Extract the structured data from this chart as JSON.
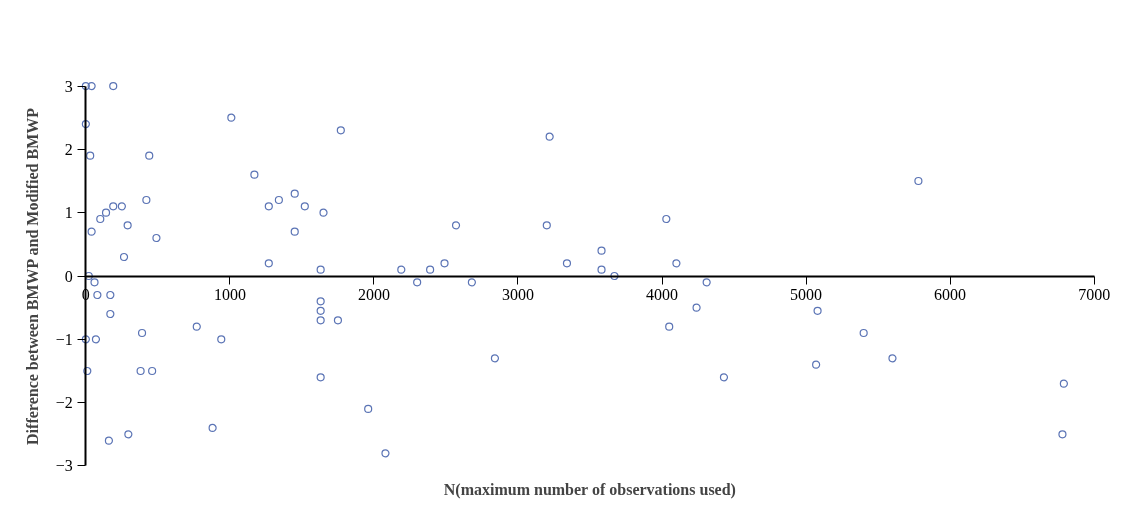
{
  "chart_data": {
    "type": "scatter",
    "xlabel": "N(maximum number of observations used)",
    "ylabel": "Difference between BMWP and Modified BMWP",
    "xlim": [
      0,
      7000
    ],
    "ylim": [
      -3,
      3
    ],
    "xticks": [
      0,
      1000,
      2000,
      3000,
      4000,
      5000,
      6000,
      7000
    ],
    "yticks": [
      {
        "value": -3,
        "label": "−3"
      },
      {
        "value": -2,
        "label": "−2"
      },
      {
        "value": -1,
        "label": "−1"
      },
      0,
      1,
      2,
      3
    ],
    "grid": false,
    "marker": "circle",
    "series": [
      {
        "color": "#5b74b5",
        "x": [
          0,
          40,
          190,
          0,
          30,
          1010,
          1770,
          3220,
          5780,
          440,
          1170,
          420,
          190,
          250,
          140,
          100,
          290,
          40,
          490,
          265,
          1270,
          1340,
          1450,
          1520,
          1650,
          1450,
          1270,
          1630,
          2570,
          3200,
          4030,
          2190,
          2300,
          2390,
          2490,
          2680,
          3340,
          3580,
          3580,
          3670,
          4100,
          4310,
          4240,
          4050,
          2840,
          4430,
          5080,
          5400,
          5070,
          5600,
          6790,
          6780,
          20,
          60,
          80,
          170,
          170,
          0,
          70,
          10,
          390,
          380,
          460,
          160,
          295,
          770,
          940,
          880,
          1630,
          1630,
          1630,
          1750,
          1630,
          1960,
          2080
        ],
        "values": [
          3.0,
          3.0,
          3.0,
          2.4,
          1.9,
          2.5,
          2.3,
          2.2,
          1.5,
          1.9,
          1.6,
          1.2,
          1.1,
          1.1,
          1.0,
          0.9,
          0.8,
          0.7,
          0.6,
          0.3,
          1.1,
          1.2,
          1.3,
          1.1,
          1.0,
          0.7,
          0.2,
          0.1,
          0.8,
          0.8,
          0.9,
          0.1,
          -0.1,
          0.1,
          0.2,
          -0.1,
          0.2,
          0.4,
          0.1,
          0.0,
          0.2,
          -0.1,
          -0.5,
          -0.8,
          -1.3,
          -1.6,
          -0.55,
          -0.9,
          -1.4,
          -1.3,
          -1.7,
          -2.5,
          0.0,
          -0.1,
          -0.3,
          -0.3,
          -0.6,
          -1.0,
          -1.0,
          -1.5,
          -0.9,
          -1.5,
          -1.5,
          -2.6,
          -2.5,
          -0.8,
          -1.0,
          -2.4,
          -0.4,
          -0.55,
          -0.7,
          -0.7,
          -1.6,
          -2.1,
          -2.8
        ]
      }
    ]
  }
}
